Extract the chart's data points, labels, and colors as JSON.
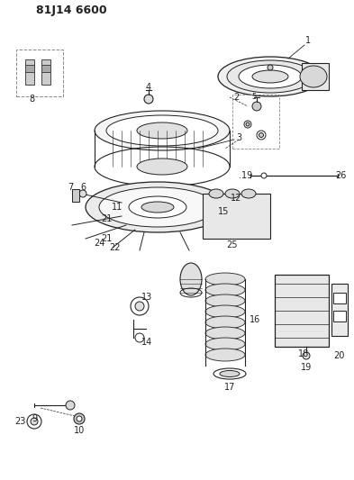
{
  "title": "81J14 6600",
  "bg_color": "#ffffff",
  "line_color": "#222222",
  "title_fontsize": 9,
  "label_fontsize": 7,
  "fig_width": 3.93,
  "fig_height": 5.33,
  "dpi": 100
}
